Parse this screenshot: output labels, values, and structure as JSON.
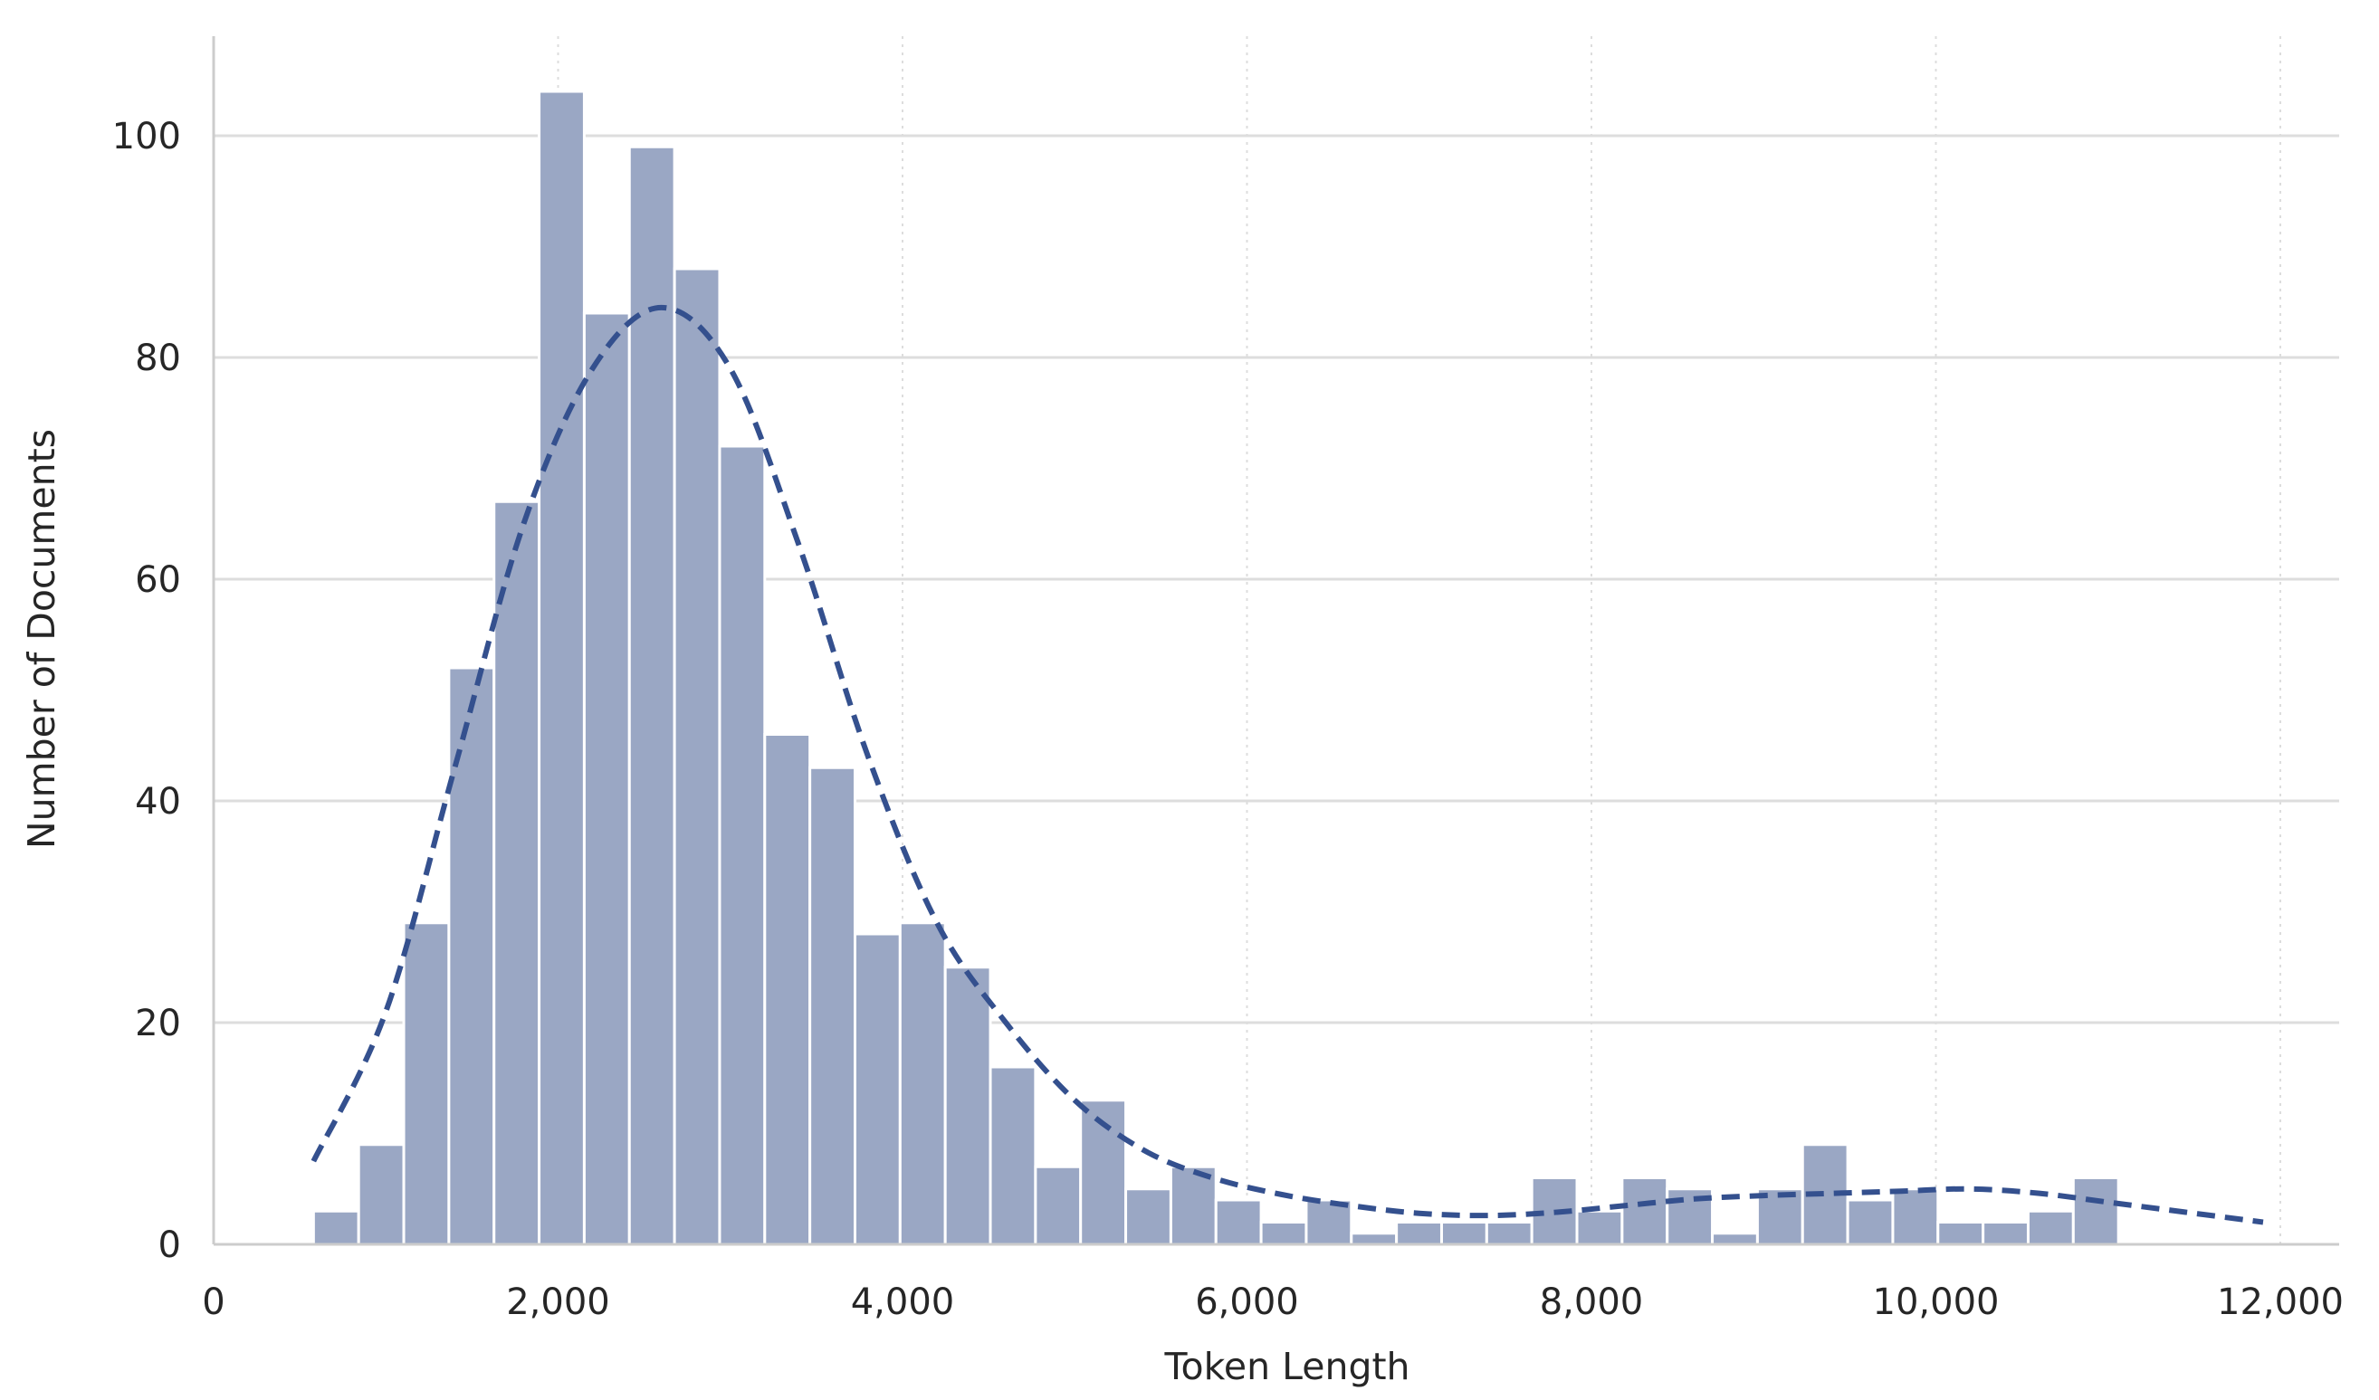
{
  "chart_data": {
    "type": "bar",
    "subtype": "histogram-with-kde",
    "title": "",
    "xlabel": "Token Length",
    "ylabel": "Number of Documents",
    "xlim": [
      0,
      12200
    ],
    "ylim": [
      0,
      109
    ],
    "xticks": [
      0,
      2000,
      4000,
      6000,
      8000,
      10000,
      12000
    ],
    "xtick_labels": [
      "0",
      "2,000",
      "4,000",
      "6,000",
      "8,000",
      "10,000",
      "12,000"
    ],
    "yticks": [
      0,
      20,
      40,
      60,
      80,
      100
    ],
    "ytick_labels": [
      "0",
      "20",
      "40",
      "60",
      "80",
      "100"
    ],
    "grid": "horizontal solid, vertical dotted",
    "legend": "none",
    "bin_start": 580,
    "bin_width": 262,
    "values": [
      3,
      9,
      29,
      52,
      67,
      104,
      84,
      99,
      88,
      72,
      46,
      43,
      28,
      29,
      25,
      16,
      7,
      13,
      5,
      7,
      4,
      2,
      4,
      1,
      2,
      2,
      2,
      6,
      3,
      6,
      5,
      1,
      5,
      9,
      4,
      5,
      2,
      2,
      3,
      6
    ],
    "kde": {
      "x": [
        580,
        1000,
        1400,
        1800,
        2200,
        2600,
        3000,
        3400,
        3800,
        4200,
        4600,
        5000,
        5400,
        5800,
        6200,
        6600,
        7000,
        7400,
        7800,
        8200,
        8600,
        9000,
        9400,
        9800,
        10200,
        10600,
        11000,
        11400,
        11900
      ],
      "y": [
        7.5,
        21,
        43,
        65,
        79,
        84.5,
        79,
        63,
        44,
        29,
        20,
        13,
        8.5,
        6,
        4.5,
        3.5,
        2.8,
        2.6,
        2.9,
        3.5,
        4.1,
        4.4,
        4.6,
        4.8,
        5.0,
        4.6,
        3.8,
        3.0,
        2.0
      ]
    },
    "colors": {
      "bar": "#9aa7c4",
      "kde": "#34508e",
      "grid": "#dddddd",
      "axis": "#cccccc"
    }
  }
}
